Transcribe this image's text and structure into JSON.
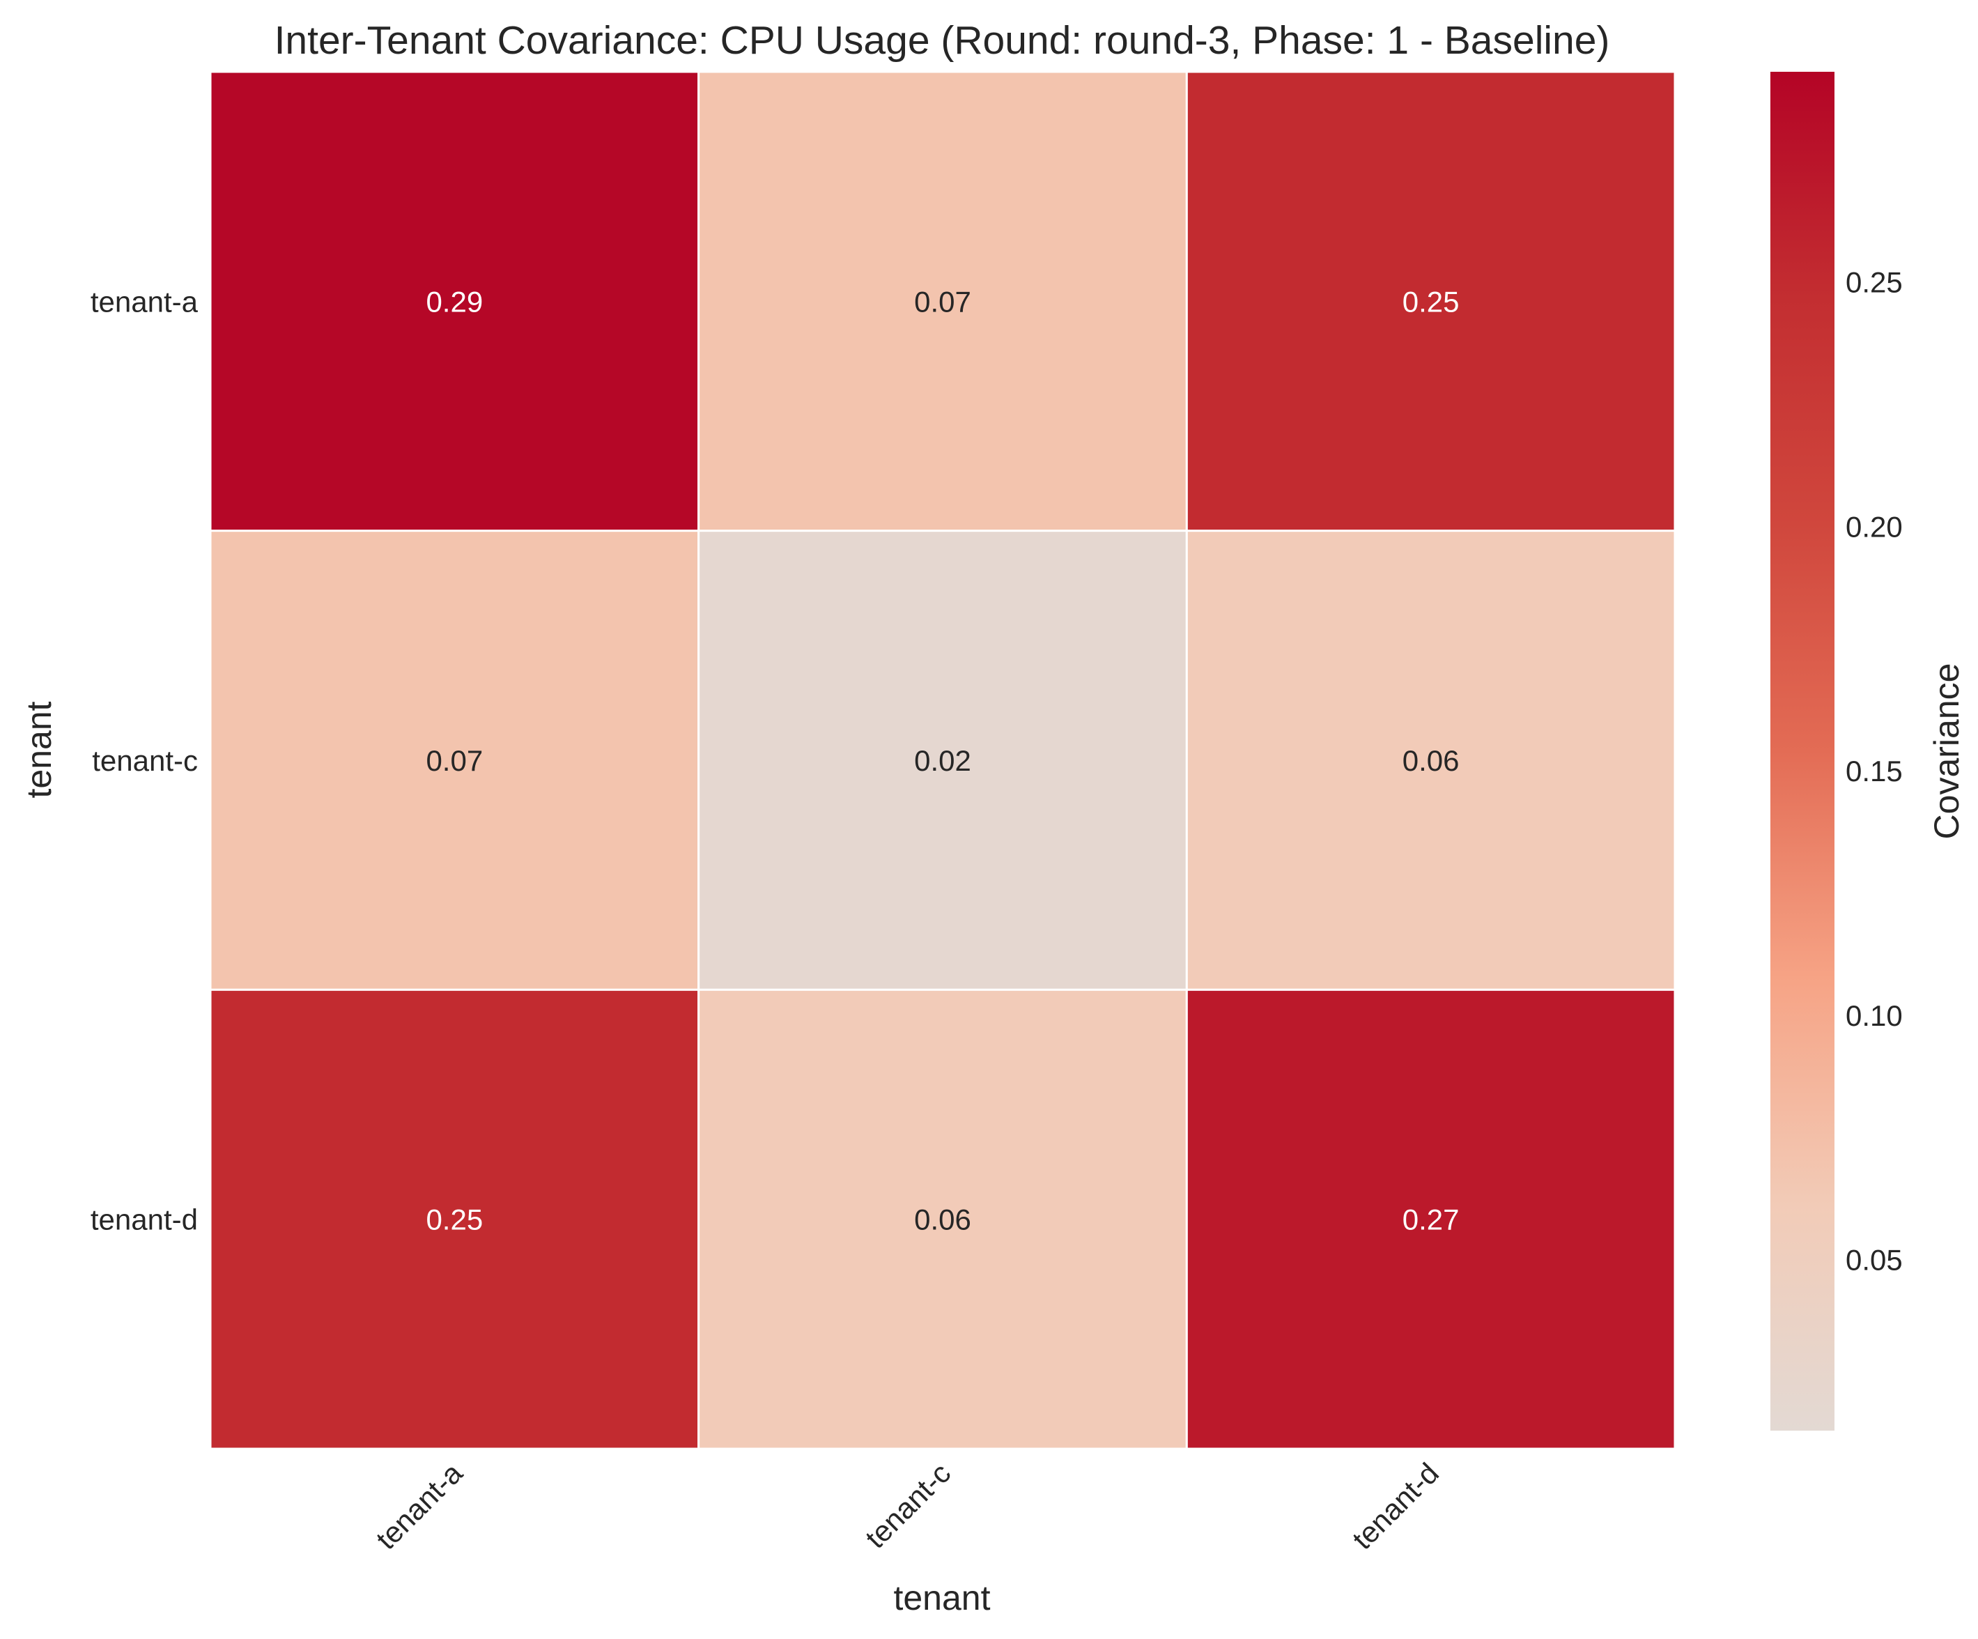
{
  "chart_data": {
    "type": "heatmap",
    "title": "Inter-Tenant Covariance: CPU Usage (Round: round-3, Phase: 1 - Baseline)",
    "xlabel": "tenant",
    "ylabel": "tenant",
    "x_categories": [
      "tenant-a",
      "tenant-c",
      "tenant-d"
    ],
    "y_categories": [
      "tenant-a",
      "tenant-c",
      "tenant-d"
    ],
    "values": [
      [
        0.29,
        0.07,
        0.25
      ],
      [
        0.07,
        0.02,
        0.06
      ],
      [
        0.25,
        0.06,
        0.27
      ]
    ],
    "colorbar": {
      "label": "Covariance",
      "range": [
        0.015,
        0.293
      ],
      "ticks": [
        "0.05",
        "0.10",
        "0.15",
        "0.20",
        "0.25"
      ],
      "colormap": "coolwarm-upper",
      "colors": [
        "#e3d9d3",
        "#f2cbb7",
        "#f6a385",
        "#e36c55",
        "#d0473d",
        "#c32e31",
        "#b40426"
      ]
    },
    "annotations": true,
    "grid_lines": "white"
  }
}
